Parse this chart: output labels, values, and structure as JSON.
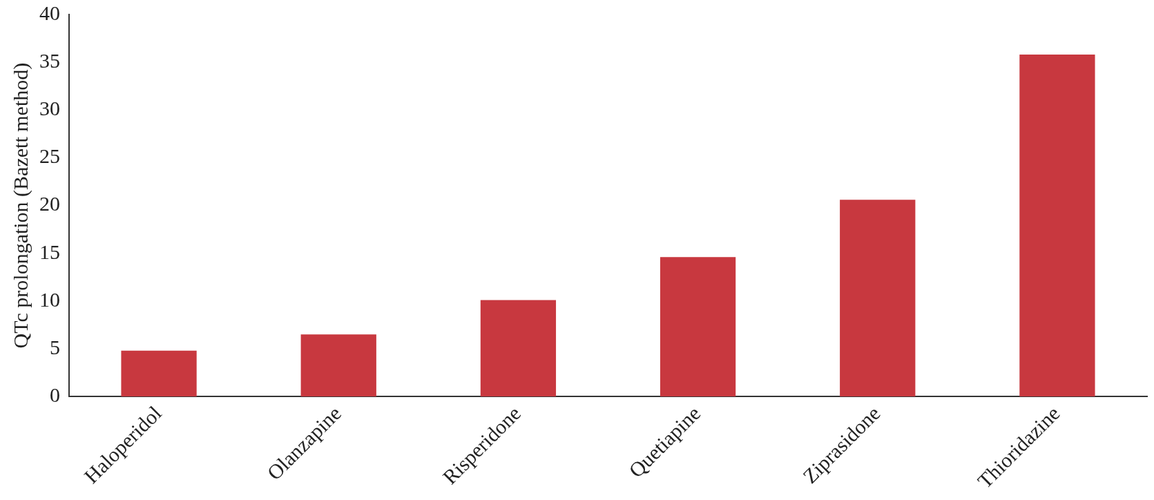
{
  "chart_data": {
    "type": "bar",
    "ylabel": "QTc prolongation (Bazett method)",
    "categories": [
      "Haloperidol",
      "Olanzapine",
      "Risperidone",
      "Quetiapine",
      "Ziprasidone",
      "Thioridazine"
    ],
    "values": [
      4.8,
      6.5,
      10.1,
      14.6,
      20.6,
      35.8
    ],
    "color": "#c8383f",
    "ylim": [
      0,
      40
    ],
    "yticks": [
      0,
      5,
      10,
      15,
      20,
      25,
      30,
      35,
      40
    ],
    "grid": false,
    "legend": false
  }
}
